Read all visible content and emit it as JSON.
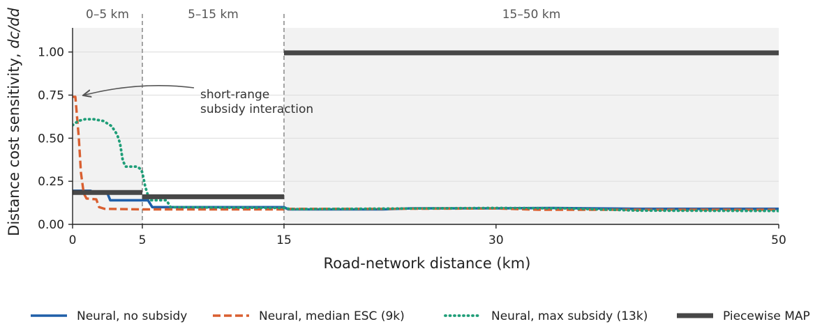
{
  "chart_data": {
    "type": "line",
    "xlabel": "Road-network distance (km)",
    "ylabel": "Distance cost sensitivity, dc/dd",
    "ylabel_plain": "Distance cost sensitivity, ",
    "ylabel_italic": "dc/dd",
    "xlim": [
      0,
      50
    ],
    "ylim": [
      0,
      1.14
    ],
    "x_scale": "piecewise-linear: 0-5 km, 5-15 km and 15-50 km each drawn as a separate segment",
    "x_ticks": [
      {
        "value": 0,
        "label": "0"
      },
      {
        "value": 5,
        "label": "5"
      },
      {
        "value": 15,
        "label": "15"
      },
      {
        "value": 30,
        "label": "30"
      },
      {
        "value": 50,
        "label": "50"
      }
    ],
    "y_ticks": [
      {
        "value": 0,
        "label": "0.00"
      },
      {
        "value": 0.25,
        "label": "0.25"
      },
      {
        "value": 0.5,
        "label": "0.50"
      },
      {
        "value": 0.75,
        "label": "0.75"
      },
      {
        "value": 1.0,
        "label": "1.00"
      }
    ],
    "grid": "horizontal",
    "regions": [
      {
        "label": "0–5 km",
        "x0": 0,
        "x1": 5,
        "shaded": true
      },
      {
        "label": "5–15 km",
        "x0": 5,
        "x1": 15,
        "shaded": false
      },
      {
        "label": "15–50 km",
        "x0": 15,
        "x1": 50,
        "shaded": true
      }
    ],
    "boundaries": [
      5,
      15
    ],
    "annotation": {
      "lines": [
        "short-range",
        "subsidy interaction"
      ],
      "target": {
        "x": 0.25,
        "y": 0.74
      }
    },
    "legend_position": "bottom",
    "series": [
      {
        "name": "Neural, no subsidy",
        "color": "#1f5fa8",
        "style": "solid",
        "points": [
          [
            0,
            0.195
          ],
          [
            1.3,
            0.195
          ],
          [
            1.6,
            0.18
          ],
          [
            2.5,
            0.18
          ],
          [
            2.7,
            0.14
          ],
          [
            5.0,
            0.14
          ],
          [
            5.4,
            0.14
          ],
          [
            5.7,
            0.1
          ],
          [
            15.0,
            0.1
          ],
          [
            15.3,
            0.087
          ],
          [
            22,
            0.087
          ],
          [
            24,
            0.093
          ],
          [
            30,
            0.093
          ],
          [
            34,
            0.095
          ],
          [
            40,
            0.09
          ],
          [
            50,
            0.09
          ]
        ]
      },
      {
        "name": "Neural, median ESC (9k)",
        "color": "#d95f30",
        "style": "dashed",
        "points": [
          [
            0,
            0.74
          ],
          [
            0.2,
            0.74
          ],
          [
            0.45,
            0.5
          ],
          [
            0.6,
            0.3
          ],
          [
            0.8,
            0.18
          ],
          [
            1.0,
            0.15
          ],
          [
            1.7,
            0.145
          ],
          [
            1.9,
            0.1
          ],
          [
            2.3,
            0.09
          ],
          [
            5.0,
            0.087
          ],
          [
            15.0,
            0.087
          ],
          [
            15.5,
            0.09
          ],
          [
            22,
            0.09
          ],
          [
            30,
            0.092
          ],
          [
            33,
            0.085
          ],
          [
            40,
            0.085
          ],
          [
            50,
            0.085
          ]
        ]
      },
      {
        "name": "Neural, max subsidy (13k)",
        "color": "#1f9e78",
        "style": "dotted",
        "points": [
          [
            0,
            0.575
          ],
          [
            0.4,
            0.6
          ],
          [
            0.9,
            0.61
          ],
          [
            1.5,
            0.61
          ],
          [
            2.2,
            0.6
          ],
          [
            2.8,
            0.57
          ],
          [
            3.2,
            0.52
          ],
          [
            3.4,
            0.47
          ],
          [
            3.6,
            0.37
          ],
          [
            3.8,
            0.335
          ],
          [
            4.6,
            0.335
          ],
          [
            4.9,
            0.32
          ],
          [
            5.0,
            0.3
          ],
          [
            5.2,
            0.22
          ],
          [
            5.5,
            0.14
          ],
          [
            6.7,
            0.14
          ],
          [
            7.0,
            0.1
          ],
          [
            15.0,
            0.095
          ],
          [
            15.5,
            0.088
          ],
          [
            20,
            0.09
          ],
          [
            30,
            0.095
          ],
          [
            35,
            0.093
          ],
          [
            40,
            0.08
          ],
          [
            50,
            0.078
          ]
        ]
      },
      {
        "name": "Piecewise MAP",
        "color": "#474747",
        "style": "thick",
        "segments": [
          {
            "x0": 0,
            "x1": 5,
            "y": 0.185
          },
          {
            "x0": 5,
            "x1": 15,
            "y": 0.16
          },
          {
            "x0": 15,
            "x1": 50,
            "y": 0.995
          }
        ]
      }
    ]
  }
}
